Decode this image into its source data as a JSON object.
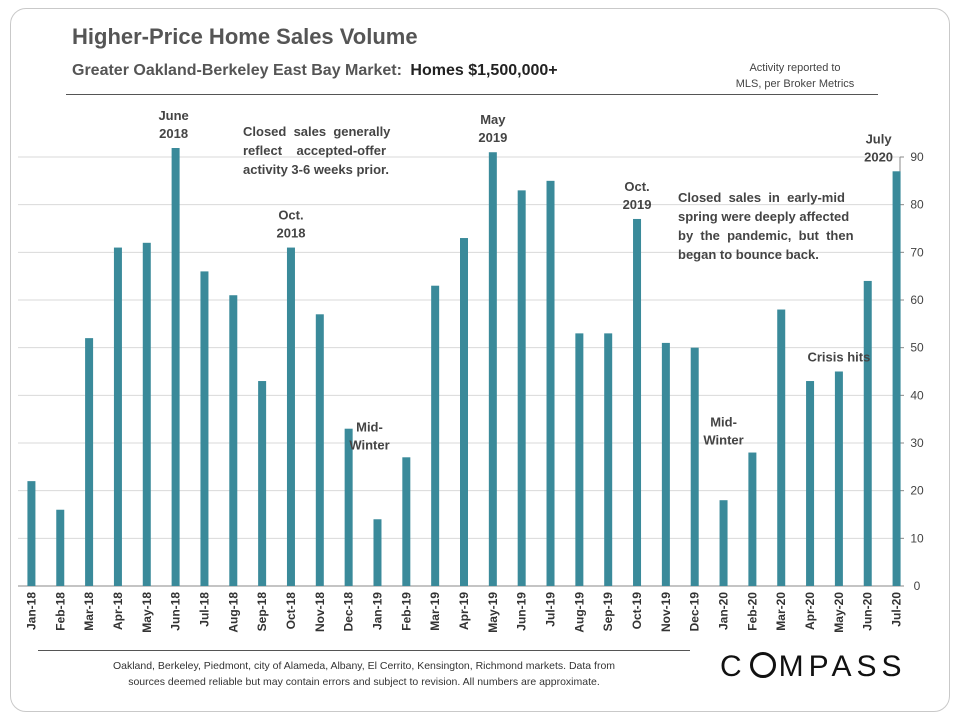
{
  "title": "Higher-Price Home Sales Volume",
  "subtitle_prefix": "Greater Oakland-Berkeley  East Bay Market:",
  "subtitle_homes": "Homes $1,500,000+",
  "activity_note": [
    "Activity reported to",
    "MLS, per Broker Metrics"
  ],
  "footer": [
    "Oakland,  Berkeley,  Piedmont,  city of Alameda,  Albany,  El Cerrito,  Kensington,  Richmond markets. Data from",
    "sources deemed reliable but may contain  errors and subject to revision.  All numbers are approximate."
  ],
  "logo_text": "COMPASS",
  "colors": {
    "bar": "#3a8a9a",
    "text": "#444444",
    "grid": "#d9d9d9"
  },
  "chart_data": {
    "type": "bar",
    "categories": [
      "Jan-18",
      "Feb-18",
      "Mar-18",
      "Apr-18",
      "May-18",
      "Jun-18",
      "Jul-18",
      "Aug-18",
      "Sep-18",
      "Oct-18",
      "Nov-18",
      "Dec-18",
      "Jan-19",
      "Feb-19",
      "Mar-19",
      "Apr-19",
      "May-19",
      "Jun-19",
      "Jul-19",
      "Aug-19",
      "Sep-19",
      "Oct-19",
      "Nov-19",
      "Dec-19",
      "Jan-20",
      "Feb-20",
      "Mar-20",
      "Apr-20",
      "May-20",
      "Jun-20",
      "Jul-20"
    ],
    "values": [
      22,
      16,
      52,
      71,
      72,
      93,
      66,
      61,
      43,
      71,
      57,
      33,
      14,
      27,
      63,
      73,
      91,
      83,
      85,
      53,
      53,
      77,
      51,
      50,
      18,
      28,
      58,
      43,
      45,
      64,
      87
    ],
    "ylim": [
      0,
      90
    ],
    "yticks": [
      0,
      10,
      20,
      30,
      40,
      50,
      60,
      70,
      80,
      90
    ],
    "y_axis_position": "right",
    "grid": true,
    "annotations": [
      {
        "lines": [
          "June",
          "2018"
        ],
        "bar_index": 5
      },
      {
        "lines": [
          "Oct.",
          "2018"
        ],
        "bar_index": 9
      },
      {
        "lines": [
          "Mid-",
          "Winter"
        ],
        "bar_index": 12
      },
      {
        "lines": [
          "May",
          "2019"
        ],
        "bar_index": 16
      },
      {
        "lines": [
          "Oct.",
          "2019"
        ],
        "bar_index": 21
      },
      {
        "lines": [
          "Mid-",
          "Winter"
        ],
        "bar_index": 24
      },
      {
        "lines": [
          "Crisis hits"
        ],
        "bar_index": 28
      },
      {
        "lines": [
          "July",
          "2020"
        ],
        "bar_index": 30
      }
    ],
    "notes": [
      {
        "lines": [
          "Closed  sales  generally",
          "reflect    accepted-offer",
          "activity 3-6 weeks prior."
        ]
      },
      {
        "lines": [
          "Closed  sales  in  early-mid",
          "spring were deeply affected",
          "by  the  pandemic,  but  then",
          "began to bounce back."
        ]
      }
    ]
  }
}
